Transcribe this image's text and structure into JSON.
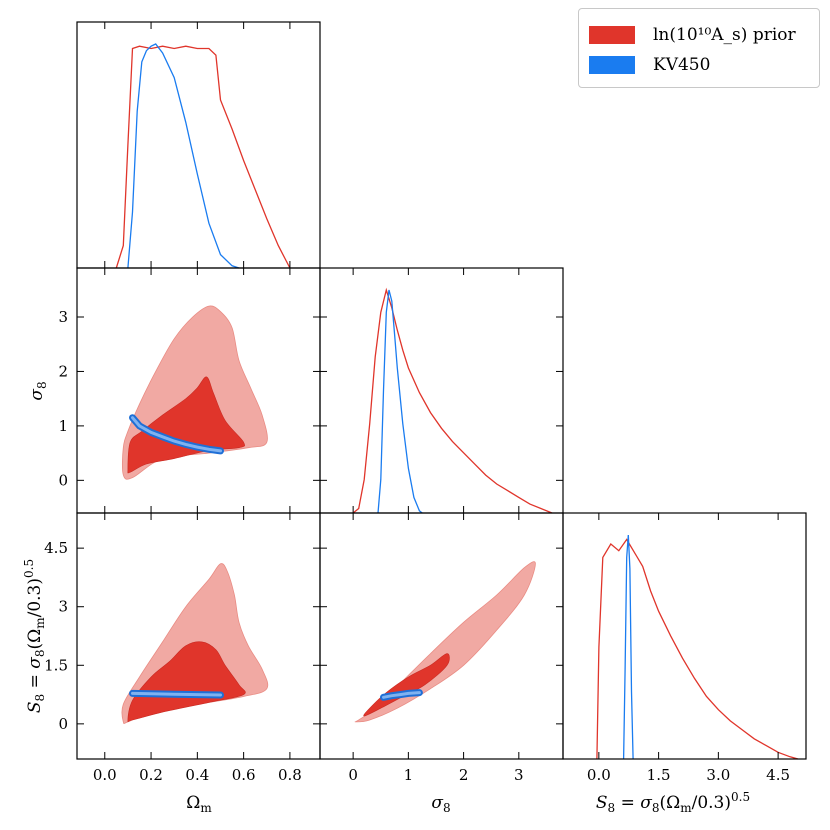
{
  "colors": {
    "prior_dark": "#e0352b",
    "prior_light": "#f1a9a3",
    "kv_dark": "#1f6fd6",
    "kv_light": "#7fb2f0",
    "kv_line": "#1a7cf0",
    "prior_line": "#e0352b"
  },
  "legend": {
    "prior_label": "ln(10¹⁰A_s) prior",
    "kv_label": "KV450"
  },
  "axes": {
    "omega_label": "Ω_m",
    "sigma8_label": "σ_8",
    "s8_label": "S_8 = σ_8(Ω_m/0.3)^0.5",
    "omega_ticks": [
      "0.0",
      "0.2",
      "0.4",
      "0.6",
      "0.8"
    ],
    "sigma8_ticks_x": [
      "0",
      "1",
      "2",
      "3"
    ],
    "sigma8_ticks_y": [
      "0",
      "1",
      "2",
      "3"
    ],
    "s8_ticks_y": [
      "0",
      "1.5",
      "3",
      "4.5"
    ],
    "s8_ticks_x": [
      "0.0",
      "1.5",
      "3.0",
      "4.5"
    ]
  },
  "chart_data": [
    {
      "type": "line",
      "panel": "Omega_m marginal",
      "xlim": [
        -0.12,
        0.93
      ],
      "series": [
        {
          "name": "ln(10¹⁰A_s) prior",
          "x": [
            0.05,
            0.08,
            0.1,
            0.12,
            0.15,
            0.2,
            0.25,
            0.3,
            0.35,
            0.4,
            0.45,
            0.48,
            0.5,
            0.55,
            0.6,
            0.65,
            0.7,
            0.75,
            0.8
          ],
          "y": [
            0.0,
            0.1,
            0.55,
            0.98,
            0.99,
            0.98,
            0.99,
            0.98,
            0.99,
            0.98,
            0.98,
            0.95,
            0.75,
            0.62,
            0.48,
            0.35,
            0.22,
            0.1,
            0.0
          ]
        },
        {
          "name": "KV450",
          "x": [
            0.1,
            0.12,
            0.14,
            0.16,
            0.18,
            0.2,
            0.22,
            0.25,
            0.3,
            0.35,
            0.4,
            0.45,
            0.5,
            0.55,
            0.58
          ],
          "y": [
            0.0,
            0.25,
            0.7,
            0.92,
            0.97,
            0.99,
            1.0,
            0.96,
            0.85,
            0.65,
            0.42,
            0.2,
            0.06,
            0.01,
            0.0
          ]
        }
      ]
    },
    {
      "type": "line",
      "panel": "sigma_8 marginal",
      "xlim": [
        -0.6,
        3.8
      ],
      "series": [
        {
          "name": "ln(10¹⁰A_s) prior",
          "x": [
            0.0,
            0.1,
            0.2,
            0.3,
            0.4,
            0.5,
            0.6,
            0.7,
            0.8,
            0.9,
            1.0,
            1.2,
            1.4,
            1.6,
            1.8,
            2.0,
            2.2,
            2.4,
            2.6,
            2.8,
            3.0,
            3.2,
            3.4,
            3.6
          ],
          "y": [
            0.0,
            0.02,
            0.15,
            0.4,
            0.7,
            0.9,
            1.0,
            0.92,
            0.82,
            0.73,
            0.65,
            0.54,
            0.45,
            0.38,
            0.32,
            0.27,
            0.22,
            0.17,
            0.13,
            0.1,
            0.07,
            0.04,
            0.02,
            0.0
          ]
        },
        {
          "name": "KV450",
          "x": [
            0.45,
            0.5,
            0.55,
            0.6,
            0.65,
            0.7,
            0.75,
            0.8,
            0.9,
            1.0,
            1.1,
            1.2,
            1.25
          ],
          "y": [
            0.0,
            0.15,
            0.55,
            0.9,
            1.0,
            0.95,
            0.8,
            0.65,
            0.4,
            0.2,
            0.07,
            0.01,
            0.0
          ]
        }
      ]
    },
    {
      "type": "line",
      "panel": "S_8 marginal",
      "xlim": [
        -0.9,
        5.2
      ],
      "series": [
        {
          "name": "ln(10¹⁰A_s) prior",
          "x": [
            -0.05,
            0.0,
            0.1,
            0.3,
            0.5,
            0.7,
            0.9,
            1.1,
            1.3,
            1.5,
            1.8,
            2.1,
            2.4,
            2.7,
            3.0,
            3.3,
            3.6,
            3.9,
            4.2,
            4.5,
            4.8,
            5.0
          ],
          "y": [
            0.0,
            0.5,
            0.9,
            0.96,
            0.93,
            0.98,
            0.92,
            0.86,
            0.75,
            0.66,
            0.55,
            0.45,
            0.36,
            0.28,
            0.22,
            0.17,
            0.13,
            0.09,
            0.06,
            0.03,
            0.01,
            0.0
          ]
        },
        {
          "name": "KV450",
          "x": [
            0.62,
            0.66,
            0.7,
            0.74,
            0.78,
            0.82,
            0.86
          ],
          "y": [
            0.0,
            0.4,
            0.9,
            1.0,
            0.85,
            0.3,
            0.0
          ]
        }
      ]
    },
    {
      "type": "scatter",
      "panel": "sigma_8 vs Omega_m (contours)",
      "xlim": [
        -0.12,
        0.93
      ],
      "ylim": [
        -0.6,
        3.9
      ],
      "series": [
        {
          "name": "ln(10¹⁰A_s) prior 95%",
          "x": [
            0.08,
            0.08,
            0.1,
            0.15,
            0.22,
            0.3,
            0.38,
            0.45,
            0.5,
            0.55,
            0.58,
            0.63,
            0.68,
            0.7,
            0.62,
            0.45,
            0.25,
            0.12
          ],
          "y": [
            0.1,
            0.6,
            0.9,
            1.4,
            2.0,
            2.6,
            3.0,
            3.2,
            3.1,
            2.8,
            2.2,
            1.7,
            1.2,
            0.7,
            0.6,
            0.5,
            0.4,
            0.05
          ]
        },
        {
          "name": "ln(10¹⁰A_s) prior 68%",
          "x": [
            0.1,
            0.11,
            0.16,
            0.25,
            0.35,
            0.4,
            0.44,
            0.47,
            0.52,
            0.6,
            0.58,
            0.45,
            0.3,
            0.18,
            0.11
          ],
          "y": [
            0.2,
            0.7,
            0.9,
            1.2,
            1.5,
            1.7,
            1.9,
            1.6,
            1.1,
            0.7,
            0.6,
            0.55,
            0.4,
            0.3,
            0.15
          ]
        },
        {
          "name": "KV450",
          "x": [
            0.12,
            0.15,
            0.2,
            0.25,
            0.3,
            0.35,
            0.4,
            0.45,
            0.5
          ],
          "y": [
            1.15,
            1.0,
            0.88,
            0.8,
            0.72,
            0.66,
            0.61,
            0.57,
            0.54
          ]
        }
      ]
    },
    {
      "type": "scatter",
      "panel": "S_8 vs Omega_m (contours)",
      "xlim": [
        -0.12,
        0.93
      ],
      "ylim": [
        -0.9,
        5.4
      ],
      "series": [
        {
          "name": "ln(10¹⁰A_s) prior 95%",
          "x": [
            0.08,
            0.08,
            0.15,
            0.25,
            0.35,
            0.45,
            0.5,
            0.53,
            0.56,
            0.58,
            0.62,
            0.68,
            0.7,
            0.6,
            0.4,
            0.2,
            0.1
          ],
          "y": [
            0.05,
            0.5,
            1.2,
            2.1,
            3.0,
            3.7,
            4.1,
            3.9,
            3.3,
            2.6,
            2.0,
            1.4,
            0.9,
            0.7,
            0.5,
            0.3,
            0.05
          ]
        },
        {
          "name": "ln(10¹⁰A_s) prior 68%",
          "x": [
            0.1,
            0.12,
            0.2,
            0.28,
            0.35,
            0.42,
            0.48,
            0.52,
            0.58,
            0.6,
            0.45,
            0.25,
            0.12
          ],
          "y": [
            0.1,
            0.6,
            1.2,
            1.6,
            2.0,
            2.1,
            1.9,
            1.5,
            1.0,
            0.75,
            0.55,
            0.3,
            0.1
          ]
        },
        {
          "name": "KV450",
          "x": [
            0.12,
            0.2,
            0.3,
            0.4,
            0.5
          ],
          "y": [
            0.78,
            0.77,
            0.76,
            0.75,
            0.74
          ]
        }
      ]
    },
    {
      "type": "scatter",
      "panel": "S_8 vs sigma_8 (contours)",
      "xlim": [
        -0.6,
        3.8
      ],
      "ylim": [
        -0.9,
        5.4
      ],
      "series": [
        {
          "name": "ln(10¹⁰A_s) prior 95%",
          "x": [
            0.05,
            0.3,
            0.8,
            1.4,
            2.0,
            2.6,
            3.1,
            3.3,
            3.1,
            2.6,
            2.0,
            1.4,
            0.9,
            0.4,
            0.1
          ],
          "y": [
            0.05,
            0.1,
            0.4,
            0.9,
            1.5,
            2.4,
            3.3,
            4.1,
            4.0,
            3.3,
            2.6,
            1.8,
            1.1,
            0.4,
            0.1
          ]
        },
        {
          "name": "ln(10¹⁰A_s) prior 68%",
          "x": [
            0.2,
            0.5,
            0.9,
            1.3,
            1.7,
            1.7,
            1.4,
            1.0,
            0.6,
            0.3
          ],
          "y": [
            0.2,
            0.4,
            0.7,
            1.0,
            1.5,
            1.8,
            1.5,
            1.2,
            0.8,
            0.4
          ]
        },
        {
          "name": "KV450",
          "x": [
            0.55,
            0.7,
            0.85,
            1.0,
            1.2
          ],
          "y": [
            0.68,
            0.72,
            0.75,
            0.78,
            0.8
          ]
        }
      ]
    }
  ]
}
